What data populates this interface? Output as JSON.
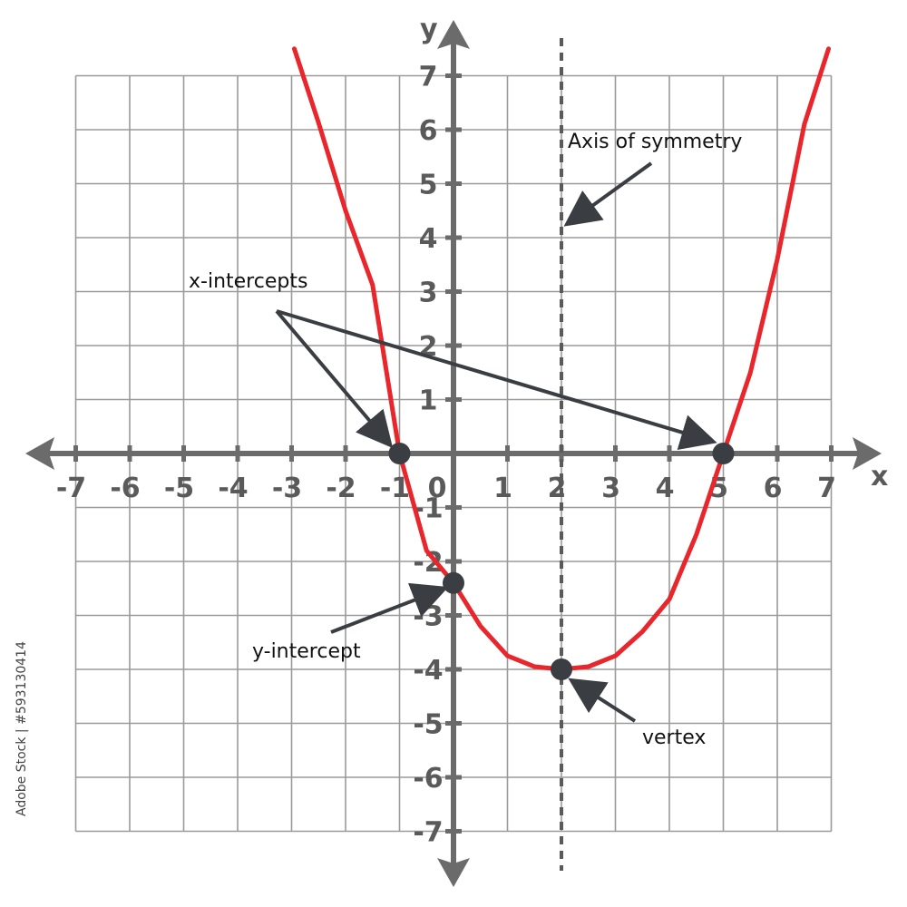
{
  "chart_data": {
    "type": "line",
    "xlabel": "x",
    "ylabel": "y",
    "xlim": [
      -7,
      7
    ],
    "ylim": [
      -7,
      7
    ],
    "grid": true,
    "x_ticks": [
      -7,
      -6,
      -5,
      -4,
      -3,
      -2,
      -1,
      0,
      1,
      2,
      3,
      4,
      5,
      6,
      7
    ],
    "y_ticks": [
      -7,
      -6,
      -5,
      -4,
      -3,
      -2,
      -1,
      1,
      2,
      3,
      4,
      5,
      6,
      7
    ],
    "x_tick_labels": [
      "-7",
      "-6",
      "-5",
      "-4",
      "-3",
      "-2",
      "-1",
      "0",
      "1",
      "2",
      "3",
      "4",
      "5",
      "6",
      "7"
    ],
    "y_tick_labels": [
      "-7",
      "-6",
      "-5",
      "-4",
      "-3",
      "-2",
      "-1",
      "1",
      "2",
      "3",
      "4",
      "5",
      "6",
      "7"
    ],
    "series": [
      {
        "color": "#e8262b",
        "x": [
          -2.95,
          -2.5,
          -2.0,
          -1.5,
          -1.0,
          -0.5,
          0.0,
          0.5,
          1.0,
          1.5,
          2.0,
          2.5,
          3.0,
          3.5,
          4.0,
          4.5,
          5.0,
          5.5,
          6.0,
          6.5,
          6.95
        ],
        "y": [
          7.5,
          6.125,
          4.5,
          3.125,
          0.0,
          -1.8,
          -2.4,
          -3.2,
          -3.75,
          -3.95,
          -4.0,
          -3.95,
          -3.75,
          -3.3,
          -2.7,
          -1.5,
          0.0,
          1.5,
          3.6,
          6.1,
          7.5
        ]
      }
    ],
    "points": [
      {
        "name": "x-intercept-left",
        "x": -1,
        "y": 0
      },
      {
        "name": "x-intercept-right",
        "x": 5,
        "y": 0
      },
      {
        "name": "y-intercept",
        "x": 0,
        "y": -2.4
      },
      {
        "name": "vertex",
        "x": 2,
        "y": -4
      }
    ],
    "axis_of_symmetry_x": 2,
    "annotations": {
      "axis_of_symmetry": "Axis of symmetry",
      "x_intercepts": "x-intercepts",
      "y_intercept": "y-intercept",
      "vertex": "vertex"
    },
    "colors": {
      "curve": "#e8262b",
      "grid": "#9a9a9a",
      "axis": "#6b6b6b",
      "point": "#3a3d42",
      "arrow": "#3a3d42"
    }
  },
  "stock_id": "Adobe Stock | #593130414"
}
